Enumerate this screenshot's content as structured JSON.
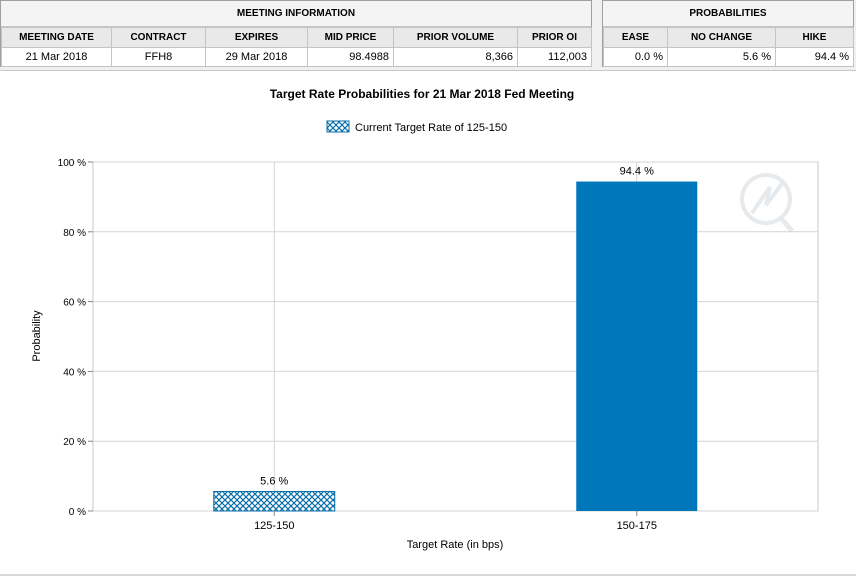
{
  "meeting_info": {
    "title": "MEETING INFORMATION",
    "headers": [
      "MEETING DATE",
      "CONTRACT",
      "EXPIRES",
      "MID PRICE",
      "PRIOR VOLUME",
      "PRIOR OI"
    ],
    "row": [
      "21 Mar 2018",
      "FFH8",
      "29 Mar 2018",
      "98.4988",
      "8,366",
      "112,003"
    ]
  },
  "probabilities": {
    "title": "PROBABILITIES",
    "headers": [
      "EASE",
      "NO CHANGE",
      "HIKE"
    ],
    "row": [
      "0.0 %",
      "5.6 %",
      "94.4 %"
    ]
  },
  "colors": {
    "bar": "#0077bb",
    "hatch_fill": "#0a6ea8",
    "grid": "#d4d4d4"
  },
  "chart_data": {
    "type": "bar",
    "title": "Target Rate Probabilities for 21 Mar 2018 Fed Meeting",
    "xlabel": "Target Rate (in bps)",
    "ylabel": "Probability",
    "categories": [
      "125-150",
      "150-175"
    ],
    "values": [
      5.6,
      94.4
    ],
    "data_labels": [
      "5.6 %",
      "94.4 %"
    ],
    "current_category": "125-150",
    "legend": [
      "Current Target Rate of 125-150"
    ],
    "legend_position": "top-center",
    "y_ticks": [
      "0 %",
      "20 %",
      "40 %",
      "60 %",
      "80 %",
      "100 %"
    ],
    "ylim": [
      0,
      100
    ],
    "grid": true
  }
}
